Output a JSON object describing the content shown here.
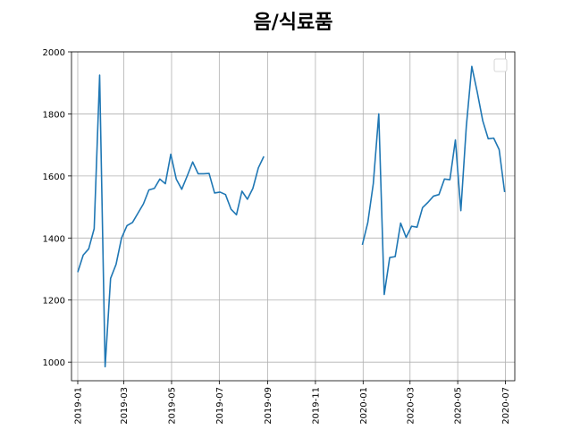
{
  "chart_data": {
    "type": "line",
    "title": "음/식료품",
    "xlabel": "",
    "ylabel": "",
    "grid": true,
    "legend": "top-right",
    "xlim": [
      "2018-12-24",
      "2020-07-13"
    ],
    "ylim": [
      940,
      2000
    ],
    "colors": {
      "series": "#1f77b4",
      "grid": "#b0b0b0"
    },
    "x_ticks": [
      "2019-01",
      "2019-03",
      "2019-05",
      "2019-07",
      "2019-09",
      "2019-11",
      "2020-01",
      "2020-03",
      "2020-05",
      "2020-07"
    ],
    "y_ticks": [
      "1000",
      "1200",
      "1400",
      "1600",
      "1800",
      "2000"
    ],
    "series": [
      {
        "segments": [
          [
            [
              "2019-01-01",
              1290
            ],
            [
              "2019-01-08",
              1345
            ],
            [
              "2019-01-15",
              1365
            ],
            [
              "2019-01-22",
              1430
            ],
            [
              "2019-01-29",
              1925
            ],
            [
              "2019-02-05",
              985
            ],
            [
              "2019-02-12",
              1270
            ],
            [
              "2019-02-19",
              1315
            ],
            [
              "2019-02-26",
              1400
            ],
            [
              "2019-03-05",
              1440
            ],
            [
              "2019-03-12",
              1450
            ],
            [
              "2019-03-19",
              1480
            ],
            [
              "2019-03-26",
              1510
            ],
            [
              "2019-04-02",
              1555
            ],
            [
              "2019-04-09",
              1560
            ],
            [
              "2019-04-16",
              1590
            ],
            [
              "2019-04-23",
              1575
            ],
            [
              "2019-04-30",
              1670
            ],
            [
              "2019-05-07",
              1590
            ],
            [
              "2019-05-14",
              1557
            ],
            [
              "2019-05-21",
              1600
            ],
            [
              "2019-05-28",
              1645
            ],
            [
              "2019-06-04",
              1607
            ],
            [
              "2019-06-11",
              1607
            ],
            [
              "2019-06-18",
              1608
            ],
            [
              "2019-06-25",
              1545
            ],
            [
              "2019-07-02",
              1548
            ],
            [
              "2019-07-09",
              1540
            ],
            [
              "2019-07-16",
              1493
            ],
            [
              "2019-07-23",
              1475
            ],
            [
              "2019-07-30",
              1551
            ],
            [
              "2019-08-06",
              1525
            ],
            [
              "2019-08-13",
              1560
            ],
            [
              "2019-08-20",
              1626
            ],
            [
              "2019-08-27",
              1663
            ]
          ],
          [
            [
              "2019-12-31",
              1378
            ],
            [
              "2020-01-07",
              1450
            ],
            [
              "2020-01-14",
              1575
            ],
            [
              "2020-01-21",
              1800
            ],
            [
              "2020-01-28",
              1218
            ],
            [
              "2020-02-04",
              1337
            ],
            [
              "2020-02-11",
              1340
            ],
            [
              "2020-02-18",
              1448
            ],
            [
              "2020-02-25",
              1402
            ],
            [
              "2020-03-03",
              1438
            ],
            [
              "2020-03-10",
              1435
            ],
            [
              "2020-03-17",
              1498
            ],
            [
              "2020-03-24",
              1515
            ],
            [
              "2020-03-31",
              1535
            ],
            [
              "2020-04-07",
              1540
            ],
            [
              "2020-04-14",
              1590
            ],
            [
              "2020-04-21",
              1588
            ],
            [
              "2020-04-28",
              1716
            ],
            [
              "2020-05-05",
              1488
            ],
            [
              "2020-05-12",
              1760
            ],
            [
              "2020-05-19",
              1953
            ],
            [
              "2020-05-26",
              1870
            ],
            [
              "2020-06-02",
              1778
            ],
            [
              "2020-06-09",
              1720
            ],
            [
              "2020-06-16",
              1722
            ],
            [
              "2020-06-23",
              1685
            ],
            [
              "2020-06-30",
              1548
            ]
          ]
        ]
      }
    ]
  }
}
